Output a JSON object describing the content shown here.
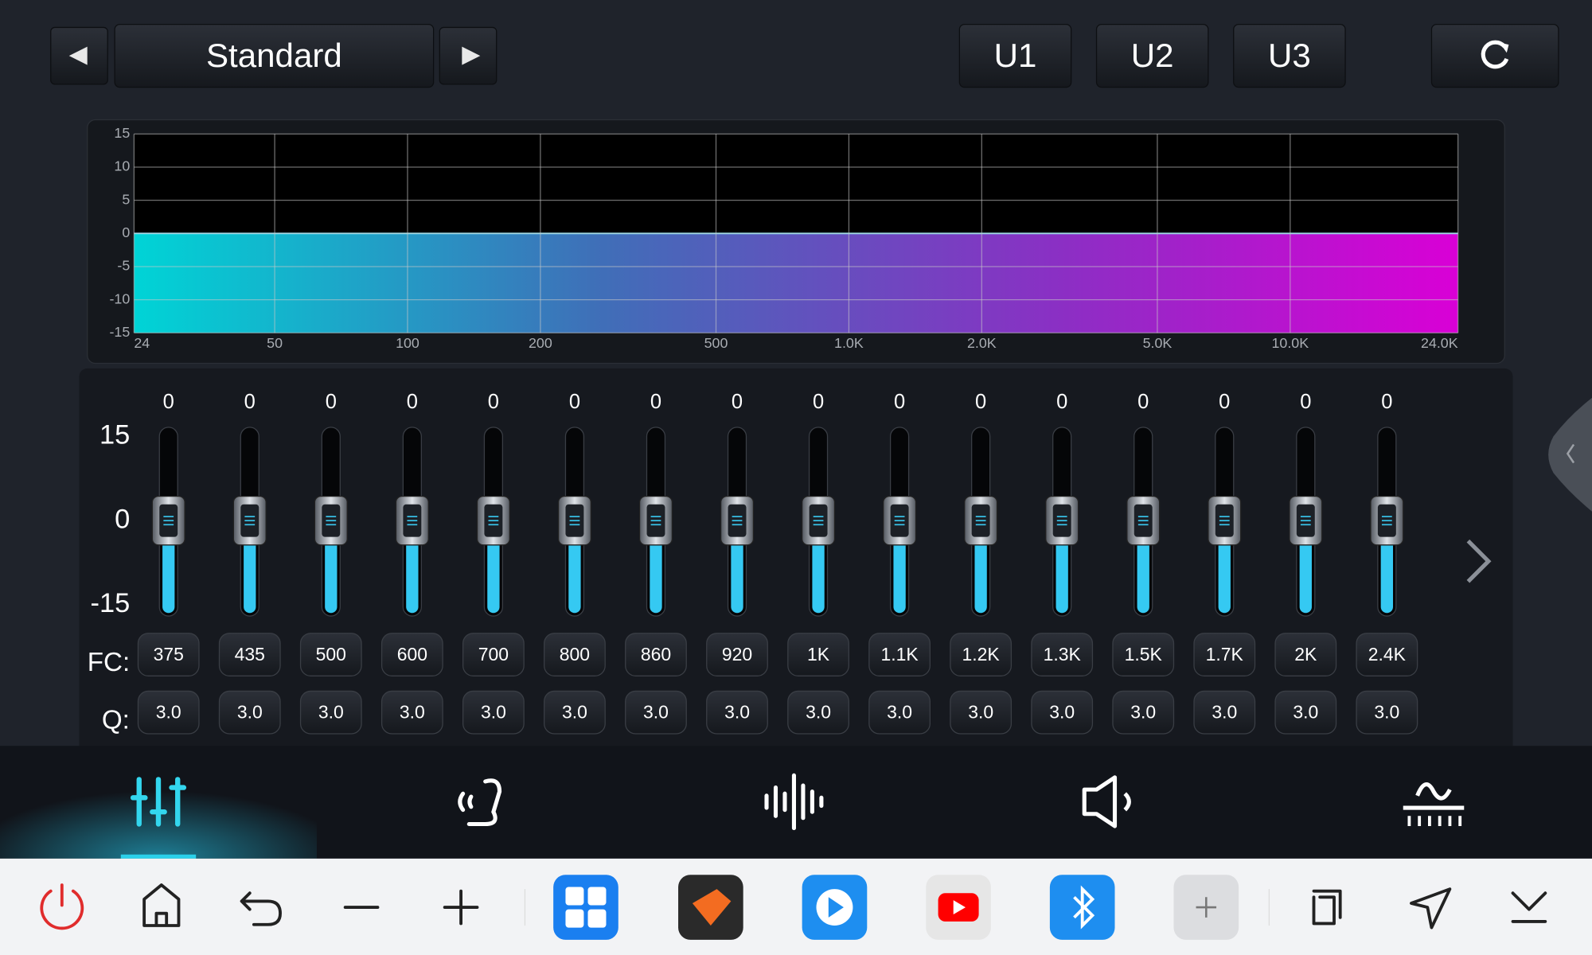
{
  "preset": {
    "name": "Standard"
  },
  "user_presets": [
    "U1",
    "U2",
    "U3"
  ],
  "response_graph": {
    "ylim": [
      -15,
      15
    ],
    "yticks": [
      15,
      10,
      5,
      0,
      -5,
      -10,
      -15
    ],
    "xlim": [
      24,
      24000
    ],
    "xscale": "log",
    "xticks": [
      24,
      50,
      100,
      200,
      500,
      {
        "value": 1000,
        "label": "1.0K"
      },
      {
        "value": 2000,
        "label": "2.0K"
      },
      {
        "value": 5000,
        "label": "5.0K"
      },
      {
        "value": 10000,
        "label": "10.0K"
      },
      {
        "value": 24000,
        "label": "24.0K"
      }
    ],
    "grid": true
  },
  "equalizer": {
    "ylim": [
      -15,
      15
    ],
    "yticks": [
      15,
      0,
      -15
    ],
    "gains": [
      0,
      0,
      0,
      0,
      0,
      0,
      0,
      0,
      0,
      0,
      0,
      0,
      0,
      0,
      0,
      0
    ],
    "fc_label": "FC:",
    "q_label": "Q:",
    "fc": [
      375,
      435,
      500,
      600,
      700,
      800,
      860,
      920,
      {
        "value": 1000,
        "label": "1K"
      },
      {
        "value": 1100,
        "label": "1.1K"
      },
      {
        "value": 1200,
        "label": "1.2K"
      },
      {
        "value": 1300,
        "label": "1.3K"
      },
      {
        "value": 1500,
        "label": "1.5K"
      },
      {
        "value": 1700,
        "label": "1.7K"
      },
      {
        "value": 2000,
        "label": "2K"
      },
      {
        "value": 2400,
        "label": "2.4K"
      }
    ],
    "q": [
      "3.0",
      "3.0",
      "3.0",
      "3.0",
      "3.0",
      "3.0",
      "3.0",
      "3.0",
      "3.0",
      "3.0",
      "3.0",
      "3.0",
      "3.0",
      "3.0",
      "3.0",
      "3.0"
    ]
  }
}
